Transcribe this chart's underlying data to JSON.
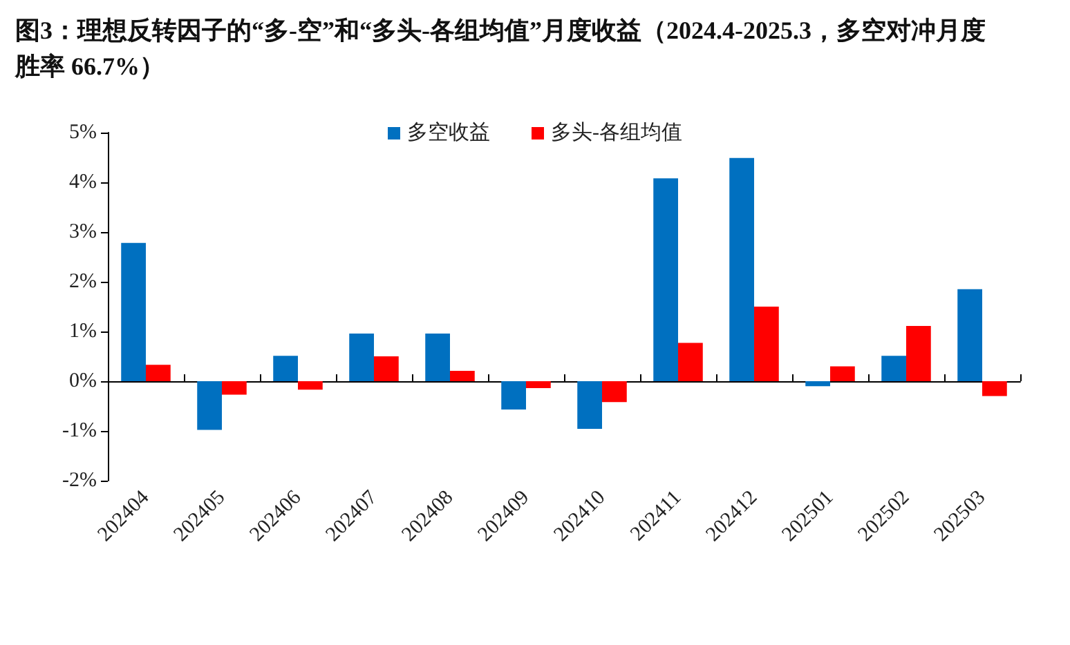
{
  "chart_data": {
    "type": "bar",
    "title": "图3：理想反转因子的“多-空”和“多头-各组均值”月度收益（2024.4-2025.3，多空对冲月度胜率 66.7%）",
    "categories": [
      "202404",
      "202405",
      "202406",
      "202407",
      "202408",
      "202409",
      "202410",
      "202411",
      "202412",
      "202501",
      "202502",
      "202503"
    ],
    "series": [
      {
        "name": "多空收益",
        "color": "#0070c0",
        "values": [
          2.78,
          -0.98,
          0.51,
          0.96,
          0.96,
          -0.57,
          -0.96,
          4.08,
          4.49,
          -0.1,
          0.51,
          1.85
        ]
      },
      {
        "name": "多头-各组均值",
        "color": "#ff0000",
        "values": [
          0.33,
          -0.27,
          -0.17,
          0.5,
          0.21,
          -0.14,
          -0.42,
          0.77,
          1.5,
          0.3,
          1.11,
          -0.3
        ]
      }
    ],
    "ylim": [
      -2,
      5
    ],
    "yticks": [
      {
        "value": -2,
        "label": "-2%"
      },
      {
        "value": -1,
        "label": "-1%"
      },
      {
        "value": 0,
        "label": "0%"
      },
      {
        "value": 1,
        "label": "1%"
      },
      {
        "value": 2,
        "label": "2%"
      },
      {
        "value": 3,
        "label": "3%"
      },
      {
        "value": 4,
        "label": "4%"
      },
      {
        "value": 5,
        "label": "5%"
      }
    ],
    "legend": "top"
  }
}
